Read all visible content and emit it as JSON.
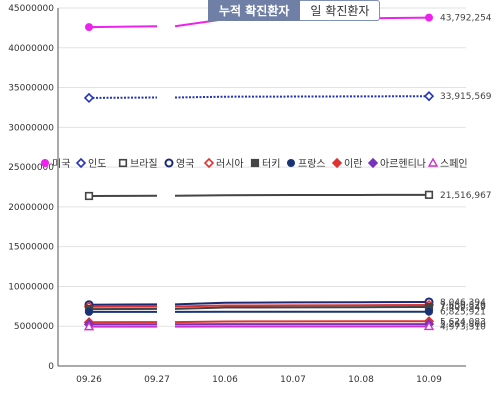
{
  "tabs": [
    {
      "label": "누적 확진환자",
      "active": true
    },
    {
      "label": "일 확진환자",
      "active": false
    }
  ],
  "chart_data": {
    "type": "line",
    "categories": [
      "09.26",
      "09.27",
      "10.06",
      "10.07",
      "10.08",
      "10.09"
    ],
    "ylim": [
      0,
      45000000
    ],
    "yticks": [
      0,
      5000000,
      10000000,
      15000000,
      20000000,
      25000000,
      30000000,
      35000000,
      40000000,
      45000000
    ],
    "ytick_labels": [
      "0",
      "5000000",
      "10000000",
      "15000000",
      "20000000",
      "25000000",
      "30000000",
      "35000000",
      "40000000",
      "45000000"
    ],
    "legend_placement": "middle, spanning the plot",
    "grid": "horizontal",
    "series": [
      {
        "name": "미국",
        "marker": "circle-filled",
        "line": "solid",
        "color": "#ee22ee",
        "values": [
          42600000,
          42700000,
          43600000,
          43650000,
          43700000,
          43792254
        ],
        "end_label": "43,792,254"
      },
      {
        "name": "인도",
        "marker": "diamond-open",
        "line": "dotted",
        "color": "#2233bb",
        "values": [
          33700000,
          33750000,
          33850000,
          33870000,
          33890000,
          33915569
        ],
        "end_label": "33,915,569"
      },
      {
        "name": "브라질",
        "marker": "square-open",
        "line": "solid",
        "color": "#444444",
        "values": [
          21370000,
          21400000,
          21470000,
          21490000,
          21500000,
          21516967
        ],
        "end_label": "21,516,967"
      },
      {
        "name": "영국",
        "marker": "circle-open",
        "line": "solid",
        "color": "#1a2a77",
        "values": [
          7700000,
          7750000,
          7950000,
          8000000,
          8020000,
          8046394
        ],
        "end_label": "8,046,394"
      },
      {
        "name": "러시아",
        "marker": "diamond-open",
        "line": "solid",
        "color": "#dd3333",
        "values": [
          7450000,
          7480000,
          7600000,
          7620000,
          7640000,
          7659829
        ],
        "end_label": "7,659,829"
      },
      {
        "name": "터키",
        "marker": "square-filled",
        "line": "solid",
        "color": "#444444",
        "values": [
          7150000,
          7180000,
          7350000,
          7370000,
          7390000,
          7409349
        ],
        "end_label": "7,409,349"
      },
      {
        "name": "프랑스",
        "marker": "circle-filled",
        "line": "solid",
        "color": "#1a3377",
        "values": [
          6800000,
          6805000,
          6818000,
          6820000,
          6823000,
          6825921
        ],
        "end_label": "6,825,921"
      },
      {
        "name": "이란",
        "marker": "diamond-filled",
        "line": "solid",
        "color": "#dd3333",
        "values": [
          5500000,
          5520000,
          5600000,
          5610000,
          5620000,
          5624083
        ],
        "end_label": "5,624,083"
      },
      {
        "name": "아르헨티나",
        "marker": "diamond-filled",
        "line": "solid",
        "color": "#7733bb",
        "values": [
          5250000,
          5255000,
          5262000,
          5264000,
          5266000,
          5267860
        ],
        "end_label": "5,267,860"
      },
      {
        "name": "스페인",
        "marker": "triangle-open",
        "line": "solid",
        "color": "#cc33cc",
        "values": [
          4950000,
          4955000,
          4967000,
          4969000,
          4971000,
          4973310
        ],
        "end_label": "4,973,310"
      }
    ]
  }
}
